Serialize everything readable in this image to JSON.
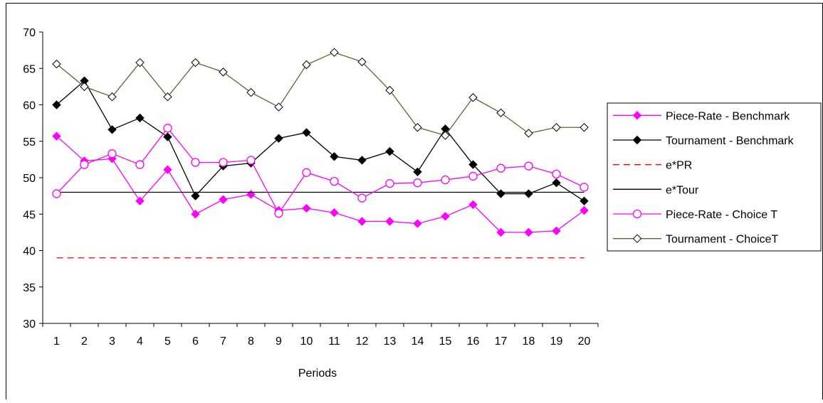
{
  "chart_data": {
    "type": "line",
    "xlabel": "Periods",
    "ylabel": "",
    "ylim": [
      30,
      70
    ],
    "yticks": [
      "30",
      "35",
      "40",
      "45",
      "50",
      "55",
      "60",
      "65",
      "70"
    ],
    "categories": [
      "1",
      "2",
      "3",
      "4",
      "5",
      "6",
      "7",
      "8",
      "9",
      "10",
      "11",
      "12",
      "13",
      "14",
      "15",
      "16",
      "17",
      "18",
      "19",
      "20"
    ],
    "grid": false,
    "legend_position": "right",
    "series": [
      {
        "name": "Piece-Rate - Benchmark",
        "color": "#FF00FF",
        "line_style": "solid",
        "marker": "filled-diamond",
        "values": [
          55.7,
          52.3,
          52.6,
          46.8,
          51.1,
          45.0,
          47.0,
          47.7,
          45.5,
          45.8,
          45.2,
          44.0,
          44.0,
          43.7,
          44.7,
          46.3,
          42.5,
          42.5,
          42.7,
          45.5
        ]
      },
      {
        "name": "Tournament - Benchmark",
        "color": "#000000",
        "line_style": "solid",
        "marker": "filled-diamond",
        "values": [
          60.0,
          63.3,
          56.6,
          58.2,
          55.6,
          47.5,
          51.6,
          52.0,
          55.4,
          56.2,
          52.9,
          52.4,
          53.6,
          50.8,
          56.7,
          51.8,
          47.8,
          47.8,
          49.3,
          46.8
        ]
      },
      {
        "name": "e*PR",
        "color": "#FF0000",
        "line_style": "dashed",
        "marker": "none",
        "values": [
          39.0,
          39.0,
          39.0,
          39.0,
          39.0,
          39.0,
          39.0,
          39.0,
          39.0,
          39.0,
          39.0,
          39.0,
          39.0,
          39.0,
          39.0,
          39.0,
          39.0,
          39.0,
          39.0,
          39.0
        ]
      },
      {
        "name": "e*Tour",
        "color": "#000000",
        "line_style": "solid",
        "marker": "none",
        "values": [
          48.0,
          48.0,
          48.0,
          48.0,
          48.0,
          48.0,
          48.0,
          48.0,
          48.0,
          48.0,
          48.0,
          48.0,
          48.0,
          48.0,
          48.0,
          48.0,
          48.0,
          48.0,
          48.0,
          48.0
        ]
      },
      {
        "name": "Piece-Rate - Choice T",
        "color": "#FF00FF",
        "line_style": "solid",
        "marker": "open-circle",
        "values": [
          47.8,
          51.8,
          53.3,
          51.8,
          56.8,
          52.1,
          52.1,
          52.4,
          45.1,
          50.7,
          49.5,
          47.2,
          49.2,
          49.3,
          49.7,
          50.2,
          51.3,
          51.6,
          50.5,
          48.7
        ]
      },
      {
        "name": "Tournament - ChoiceT",
        "color": "#556B2F",
        "line_style": "solid",
        "marker": "open-diamond",
        "values": [
          65.6,
          62.5,
          61.1,
          65.8,
          61.1,
          65.8,
          64.5,
          61.7,
          59.7,
          65.5,
          67.2,
          65.9,
          62.0,
          56.9,
          55.8,
          61.0,
          58.9,
          56.1,
          56.9,
          56.9
        ]
      }
    ]
  }
}
